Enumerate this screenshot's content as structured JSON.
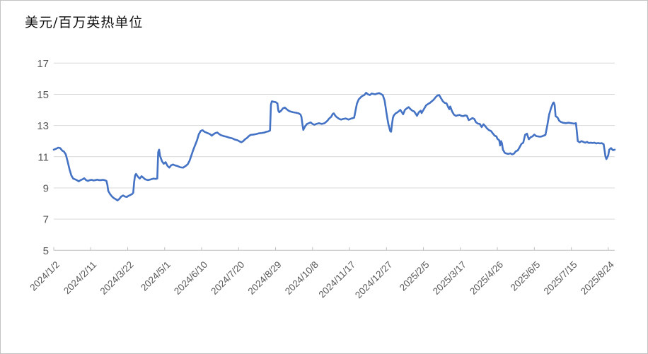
{
  "chart_data": {
    "type": "line",
    "title": "美元/百万英热单位",
    "legend": [],
    "grid": true,
    "line_color": "#4472C4",
    "grid_color": "#D9D9D9",
    "axis_color": "#BFBFBF",
    "label_color": "#595959",
    "y_ticks": [
      5,
      7,
      9,
      11,
      13,
      15,
      17
    ],
    "ylim": [
      5,
      17
    ],
    "x_day_max": 607,
    "x_tick_day_interval": 40,
    "x_tick_labels": [
      "2024/1/2",
      "2024/2/11",
      "2024/3/22",
      "2024/5/1",
      "2024/6/10",
      "2024/7/20",
      "2024/8/29",
      "2024/10/8",
      "2024/11/17",
      "2024/12/27",
      "2025/2/5",
      "2025/3/17",
      "2025/4/26",
      "2025/6/5",
      "2025/7/15",
      "2025/8/24"
    ],
    "points": [
      [
        0,
        11.45
      ],
      [
        2,
        11.5
      ],
      [
        5,
        11.58
      ],
      [
        7,
        11.55
      ],
      [
        9,
        11.4
      ],
      [
        11,
        11.33
      ],
      [
        13,
        11.15
      ],
      [
        15,
        10.7
      ],
      [
        17,
        10.2
      ],
      [
        19,
        9.8
      ],
      [
        21,
        9.6
      ],
      [
        23,
        9.55
      ],
      [
        25,
        9.5
      ],
      [
        27,
        9.42
      ],
      [
        29,
        9.5
      ],
      [
        31,
        9.55
      ],
      [
        33,
        9.62
      ],
      [
        35,
        9.5
      ],
      [
        37,
        9.45
      ],
      [
        39,
        9.5
      ],
      [
        41,
        9.52
      ],
      [
        43,
        9.48
      ],
      [
        45,
        9.5
      ],
      [
        47,
        9.53
      ],
      [
        49,
        9.5
      ],
      [
        51,
        9.5
      ],
      [
        53,
        9.52
      ],
      [
        55,
        9.5
      ],
      [
        57,
        9.45
      ],
      [
        58,
        9.2
      ],
      [
        59,
        8.8
      ],
      [
        61,
        8.6
      ],
      [
        63,
        8.45
      ],
      [
        65,
        8.35
      ],
      [
        67,
        8.28
      ],
      [
        69,
        8.2
      ],
      [
        71,
        8.3
      ],
      [
        73,
        8.45
      ],
      [
        75,
        8.52
      ],
      [
        77,
        8.45
      ],
      [
        79,
        8.42
      ],
      [
        81,
        8.5
      ],
      [
        83,
        8.55
      ],
      [
        85,
        8.62
      ],
      [
        86,
        8.7
      ],
      [
        87,
        9.4
      ],
      [
        88,
        9.8
      ],
      [
        89,
        9.9
      ],
      [
        91,
        9.72
      ],
      [
        93,
        9.6
      ],
      [
        95,
        9.75
      ],
      [
        97,
        9.65
      ],
      [
        99,
        9.55
      ],
      [
        102,
        9.5
      ],
      [
        105,
        9.55
      ],
      [
        108,
        9.6
      ],
      [
        110,
        9.58
      ],
      [
        112,
        9.6
      ],
      [
        113,
        11.3
      ],
      [
        114,
        11.45
      ],
      [
        115,
        11.05
      ],
      [
        117,
        10.72
      ],
      [
        119,
        10.55
      ],
      [
        121,
        10.65
      ],
      [
        123,
        10.42
      ],
      [
        125,
        10.3
      ],
      [
        127,
        10.45
      ],
      [
        129,
        10.5
      ],
      [
        131,
        10.45
      ],
      [
        134,
        10.4
      ],
      [
        137,
        10.32
      ],
      [
        140,
        10.3
      ],
      [
        143,
        10.42
      ],
      [
        145,
        10.52
      ],
      [
        147,
        10.75
      ],
      [
        149,
        11.1
      ],
      [
        151,
        11.45
      ],
      [
        153,
        11.75
      ],
      [
        155,
        12.05
      ],
      [
        157,
        12.45
      ],
      [
        159,
        12.65
      ],
      [
        161,
        12.7
      ],
      [
        163,
        12.6
      ],
      [
        165,
        12.55
      ],
      [
        167,
        12.5
      ],
      [
        169,
        12.45
      ],
      [
        171,
        12.35
      ],
      [
        173,
        12.45
      ],
      [
        175,
        12.52
      ],
      [
        177,
        12.55
      ],
      [
        179,
        12.45
      ],
      [
        181,
        12.38
      ],
      [
        184,
        12.32
      ],
      [
        187,
        12.28
      ],
      [
        190,
        12.22
      ],
      [
        193,
        12.18
      ],
      [
        196,
        12.1
      ],
      [
        199,
        12.05
      ],
      [
        201,
        11.98
      ],
      [
        203,
        11.93
      ],
      [
        205,
        12.0
      ],
      [
        207,
        12.12
      ],
      [
        209,
        12.2
      ],
      [
        211,
        12.32
      ],
      [
        213,
        12.4
      ],
      [
        216,
        12.42
      ],
      [
        219,
        12.45
      ],
      [
        222,
        12.5
      ],
      [
        225,
        12.52
      ],
      [
        228,
        12.55
      ],
      [
        230,
        12.6
      ],
      [
        232,
        12.62
      ],
      [
        234,
        12.68
      ],
      [
        235,
        14.35
      ],
      [
        236,
        14.55
      ],
      [
        238,
        14.52
      ],
      [
        240,
        14.5
      ],
      [
        242,
        14.42
      ],
      [
        243,
        13.95
      ],
      [
        244,
        13.85
      ],
      [
        246,
        13.95
      ],
      [
        248,
        14.1
      ],
      [
        250,
        14.15
      ],
      [
        252,
        14.05
      ],
      [
        254,
        13.95
      ],
      [
        256,
        13.9
      ],
      [
        259,
        13.85
      ],
      [
        262,
        13.82
      ],
      [
        265,
        13.78
      ],
      [
        267,
        13.7
      ],
      [
        268,
        13.55
      ],
      [
        269,
        13.1
      ],
      [
        270,
        12.72
      ],
      [
        272,
        12.95
      ],
      [
        274,
        13.1
      ],
      [
        276,
        13.15
      ],
      [
        278,
        13.2
      ],
      [
        280,
        13.1
      ],
      [
        282,
        13.05
      ],
      [
        284,
        13.1
      ],
      [
        287,
        13.15
      ],
      [
        290,
        13.1
      ],
      [
        293,
        13.15
      ],
      [
        296,
        13.3
      ],
      [
        298,
        13.45
      ],
      [
        300,
        13.55
      ],
      [
        302,
        13.75
      ],
      [
        303,
        13.78
      ],
      [
        305,
        13.6
      ],
      [
        307,
        13.5
      ],
      [
        309,
        13.42
      ],
      [
        311,
        13.38
      ],
      [
        313,
        13.42
      ],
      [
        316,
        13.45
      ],
      [
        319,
        13.38
      ],
      [
        322,
        13.45
      ],
      [
        325,
        13.5
      ],
      [
        326,
        13.8
      ],
      [
        328,
        14.4
      ],
      [
        330,
        14.68
      ],
      [
        332,
        14.8
      ],
      [
        334,
        14.9
      ],
      [
        336,
        14.95
      ],
      [
        338,
        15.1
      ],
      [
        340,
        15.0
      ],
      [
        342,
        14.95
      ],
      [
        344,
        15.05
      ],
      [
        346,
        15.02
      ],
      [
        348,
        15.0
      ],
      [
        350,
        15.05
      ],
      [
        352,
        15.08
      ],
      [
        354,
        15.02
      ],
      [
        356,
        14.95
      ],
      [
        358,
        14.6
      ],
      [
        360,
        13.8
      ],
      [
        362,
        13.1
      ],
      [
        364,
        12.65
      ],
      [
        365,
        12.6
      ],
      [
        366,
        13.1
      ],
      [
        367,
        13.5
      ],
      [
        368,
        13.65
      ],
      [
        370,
        13.78
      ],
      [
        372,
        13.85
      ],
      [
        374,
        13.95
      ],
      [
        375,
        14.0
      ],
      [
        377,
        13.82
      ],
      [
        378,
        13.72
      ],
      [
        380,
        14.0
      ],
      [
        382,
        14.1
      ],
      [
        384,
        14.18
      ],
      [
        386,
        14.05
      ],
      [
        388,
        13.95
      ],
      [
        390,
        13.9
      ],
      [
        392,
        13.72
      ],
      [
        393,
        13.62
      ],
      [
        395,
        13.85
      ],
      [
        397,
        13.95
      ],
      [
        398,
        13.8
      ],
      [
        399,
        13.9
      ],
      [
        401,
        14.1
      ],
      [
        403,
        14.3
      ],
      [
        405,
        14.38
      ],
      [
        407,
        14.45
      ],
      [
        409,
        14.55
      ],
      [
        411,
        14.65
      ],
      [
        413,
        14.8
      ],
      [
        415,
        14.92
      ],
      [
        417,
        14.95
      ],
      [
        419,
        14.75
      ],
      [
        421,
        14.55
      ],
      [
        423,
        14.45
      ],
      [
        425,
        14.42
      ],
      [
        427,
        14.15
      ],
      [
        428,
        14.05
      ],
      [
        429,
        14.22
      ],
      [
        431,
        13.9
      ],
      [
        433,
        13.7
      ],
      [
        435,
        13.62
      ],
      [
        437,
        13.65
      ],
      [
        439,
        13.68
      ],
      [
        441,
        13.62
      ],
      [
        443,
        13.6
      ],
      [
        445,
        13.65
      ],
      [
        447,
        13.62
      ],
      [
        449,
        13.35
      ],
      [
        451,
        13.4
      ],
      [
        453,
        13.48
      ],
      [
        455,
        13.42
      ],
      [
        457,
        13.2
      ],
      [
        459,
        13.12
      ],
      [
        461,
        13.1
      ],
      [
        463,
        12.9
      ],
      [
        465,
        13.08
      ],
      [
        467,
        12.95
      ],
      [
        469,
        12.8
      ],
      [
        471,
        12.7
      ],
      [
        473,
        12.65
      ],
      [
        475,
        12.5
      ],
      [
        477,
        12.35
      ],
      [
        479,
        12.3
      ],
      [
        480,
        12.15
      ],
      [
        482,
        12.05
      ],
      [
        483,
        11.72
      ],
      [
        484,
        12.0
      ],
      [
        485,
        11.85
      ],
      [
        486,
        11.45
      ],
      [
        488,
        11.25
      ],
      [
        490,
        11.2
      ],
      [
        492,
        11.18
      ],
      [
        494,
        11.22
      ],
      [
        496,
        11.15
      ],
      [
        498,
        11.2
      ],
      [
        500,
        11.35
      ],
      [
        502,
        11.4
      ],
      [
        504,
        11.6
      ],
      [
        506,
        11.82
      ],
      [
        508,
        11.9
      ],
      [
        510,
        12.4
      ],
      [
        512,
        12.48
      ],
      [
        514,
        12.12
      ],
      [
        516,
        12.25
      ],
      [
        518,
        12.3
      ],
      [
        520,
        12.42
      ],
      [
        522,
        12.32
      ],
      [
        524,
        12.3
      ],
      [
        526,
        12.28
      ],
      [
        528,
        12.3
      ],
      [
        530,
        12.35
      ],
      [
        532,
        12.4
      ],
      [
        534,
        13.0
      ],
      [
        536,
        13.7
      ],
      [
        538,
        14.1
      ],
      [
        540,
        14.42
      ],
      [
        541,
        14.48
      ],
      [
        542,
        14.3
      ],
      [
        543,
        13.6
      ],
      [
        545,
        13.52
      ],
      [
        547,
        13.3
      ],
      [
        549,
        13.22
      ],
      [
        551,
        13.18
      ],
      [
        554,
        13.15
      ],
      [
        557,
        13.18
      ],
      [
        560,
        13.15
      ],
      [
        563,
        13.12
      ],
      [
        565,
        13.15
      ],
      [
        566,
        12.6
      ],
      [
        567,
        12.0
      ],
      [
        569,
        11.92
      ],
      [
        571,
        12.0
      ],
      [
        573,
        11.95
      ],
      [
        575,
        11.9
      ],
      [
        577,
        11.95
      ],
      [
        579,
        11.88
      ],
      [
        581,
        11.9
      ],
      [
        583,
        11.88
      ],
      [
        585,
        11.9
      ],
      [
        587,
        11.85
      ],
      [
        589,
        11.88
      ],
      [
        591,
        11.85
      ],
      [
        593,
        11.87
      ],
      [
        595,
        11.8
      ],
      [
        596,
        11.4
      ],
      [
        597,
        11.0
      ],
      [
        598,
        10.85
      ],
      [
        600,
        11.1
      ],
      [
        601,
        11.45
      ],
      [
        603,
        11.55
      ],
      [
        605,
        11.42
      ],
      [
        607,
        11.45
      ]
    ]
  }
}
